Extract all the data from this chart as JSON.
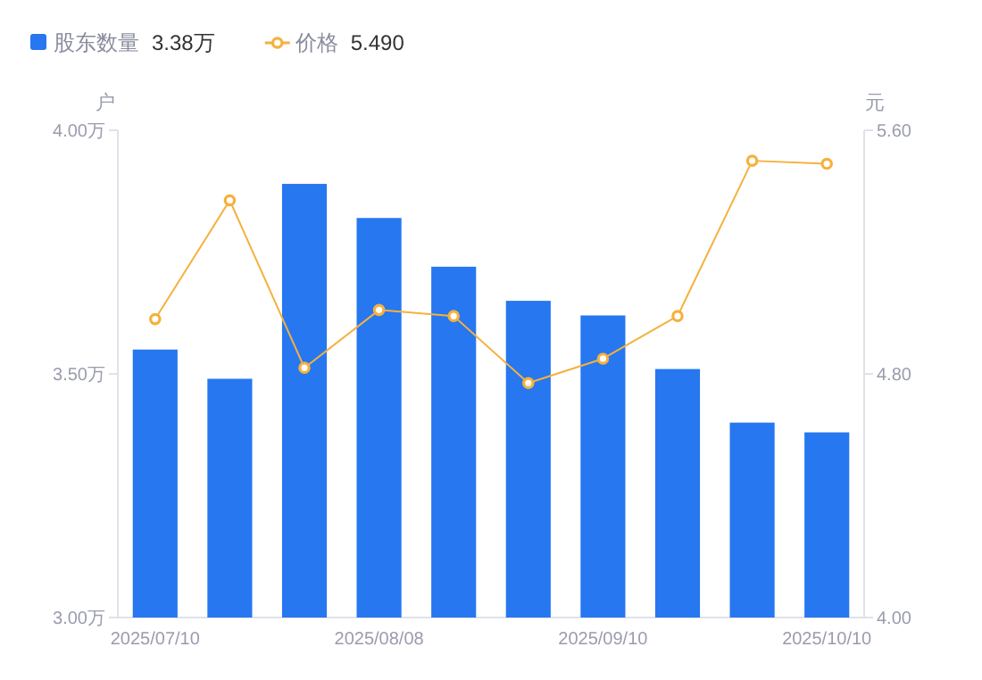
{
  "chart_data": {
    "type": "bar",
    "ylabel": "户",
    "y2label": "元",
    "categories": [
      "2025/07/10",
      null,
      null,
      "2025/08/08",
      null,
      null,
      "2025/09/10",
      null,
      null,
      "2025/10/10"
    ],
    "series": [
      {
        "name": "股东数量",
        "color": "#2677f0",
        "values": [
          3.55,
          3.49,
          3.89,
          3.82,
          3.72,
          3.65,
          3.62,
          3.51,
          3.4,
          3.38
        ]
      },
      {
        "name": "价格",
        "type": "line",
        "axis": "y2",
        "color": "#f5b13d",
        "marker": "circle",
        "values": [
          4.98,
          5.37,
          4.82,
          5.01,
          4.99,
          4.77,
          4.85,
          4.99,
          5.5,
          5.49
        ]
      }
    ],
    "annotations": [
      "3.38万",
      "5.490"
    ],
    "ylim": [
      3,
      4
    ],
    "yticks": [
      {
        "value": 3,
        "label": "3.00万"
      },
      {
        "value": 3.5,
        "label": "3.50万"
      },
      {
        "value": 4,
        "label": "4.00万"
      }
    ],
    "y2lim": [
      4,
      5.6
    ],
    "y2ticks": [
      {
        "value": 4,
        "label": "4.00"
      },
      {
        "value": 4.8,
        "label": "4.80"
      },
      {
        "value": 5.6,
        "label": "5.60"
      }
    ],
    "grid": false,
    "legend": "top left"
  }
}
